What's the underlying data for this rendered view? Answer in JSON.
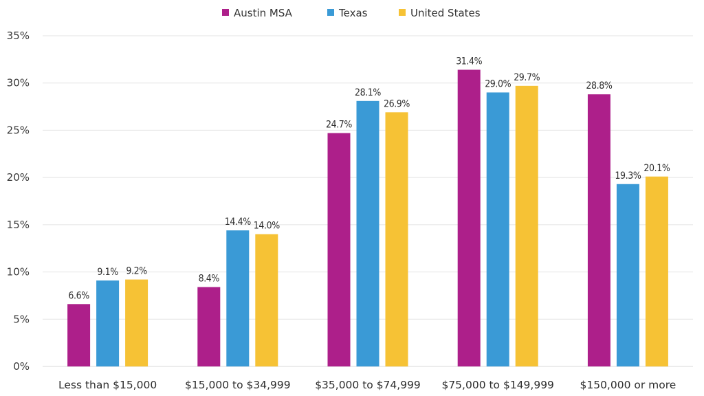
{
  "chart_data": {
    "type": "bar",
    "title": "",
    "xlabel": "",
    "ylabel": "",
    "categories": [
      "Less than $15,000",
      "$15,000 to $34,999",
      "$35,000 to $74,999",
      "$75,000 to $149,999",
      "$150,000 or more"
    ],
    "series": [
      {
        "name": "Austin MSA",
        "color": "#AD1F8A",
        "values": [
          6.6,
          8.4,
          24.7,
          31.4,
          28.8
        ],
        "labels": [
          "6.6%",
          "8.4%",
          "24.7%",
          "31.4%",
          "28.8%"
        ]
      },
      {
        "name": "Texas",
        "color": "#3A9AD6",
        "values": [
          9.1,
          14.4,
          28.1,
          29.0,
          19.3
        ],
        "labels": [
          "9.1%",
          "14.4%",
          "28.1%",
          "29.0%",
          "19.3%"
        ]
      },
      {
        "name": "United States",
        "color": "#F6C235",
        "values": [
          9.2,
          14.0,
          26.9,
          29.7,
          20.1
        ],
        "labels": [
          "9.2%",
          "14.0%",
          "26.9%",
          "29.7%",
          "20.1%"
        ]
      }
    ],
    "ylim": [
      0,
      35
    ],
    "yticks": [
      0,
      5,
      10,
      15,
      20,
      25,
      30,
      35
    ],
    "ytick_labels": [
      "0%",
      "5%",
      "10%",
      "15%",
      "20%",
      "25%",
      "30%",
      "35%"
    ],
    "grid": true,
    "legend_position": "top-center"
  }
}
